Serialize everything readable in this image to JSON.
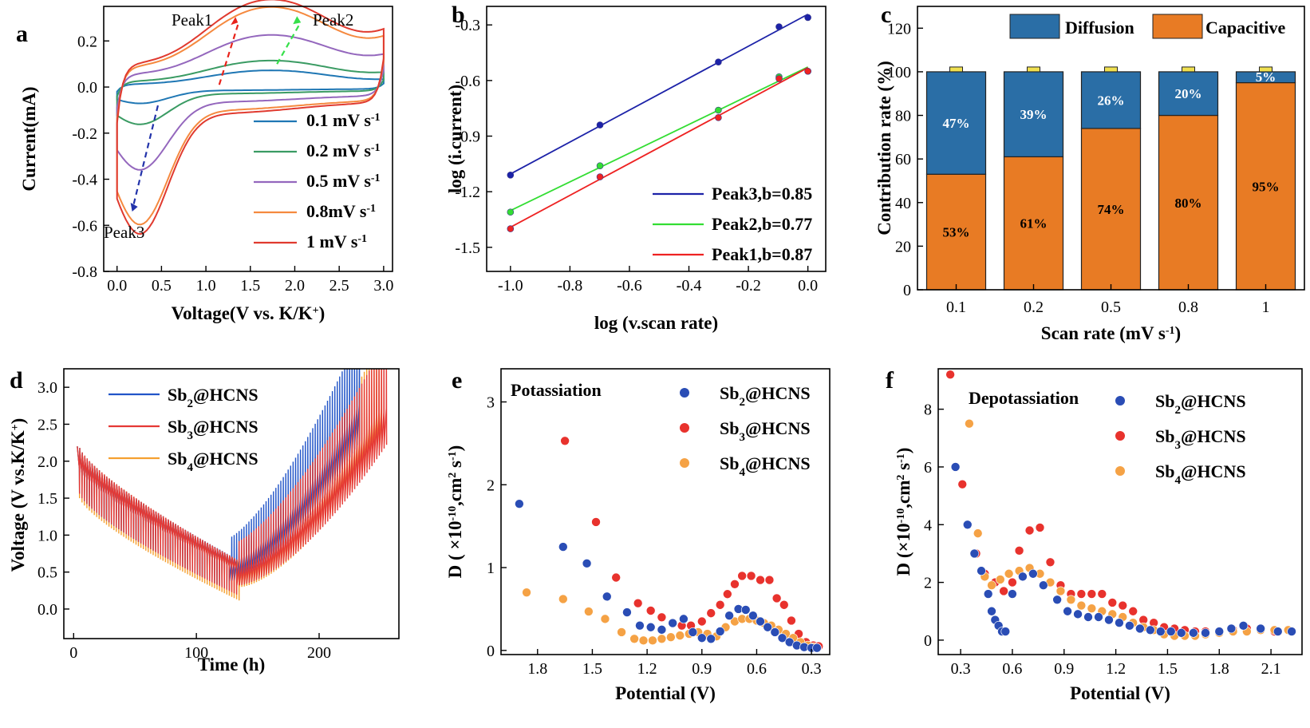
{
  "chart_data": [
    {
      "id": "a",
      "panel_label": "a",
      "type": "line",
      "xlabel": "Voltage(V vs. K/K",
      "xlabel_sup": "+",
      "xlabel_tail": ")",
      "ylabel": "Current(mA)",
      "xlim": [
        -0.15,
        3.1
      ],
      "ylim": [
        -0.8,
        0.35
      ],
      "xticks": [
        "0.0",
        "0.5",
        "1.0",
        "1.5",
        "2.0",
        "2.5",
        "3.0"
      ],
      "yticks": [
        "-0.8",
        "-0.6",
        "-0.4",
        "-0.2",
        "0.0",
        "0.2"
      ],
      "series": [
        {
          "name": "0.1 mV s",
          "sup": "-1",
          "color": "#1f77b4",
          "valley": -0.06,
          "peak": 0.06,
          "cap": 0.02
        },
        {
          "name": "0.2 mV s",
          "sup": "-1",
          "color": "#3a9b63",
          "valley": -0.14,
          "peak": 0.09,
          "cap": 0.04
        },
        {
          "name": "0.5 mV s",
          "sup": "-1",
          "color": "#9467bd",
          "valley": -0.31,
          "peak": 0.17,
          "cap": 0.09
        },
        {
          "name": "0.8mV s",
          "sup": "-1",
          "color": "#f5893f",
          "valley": -0.52,
          "peak": 0.26,
          "cap": 0.14
        },
        {
          "name": "1 mV s",
          "sup": "-1",
          "color": "#e03a2f",
          "valley": -0.55,
          "peak": 0.28,
          "cap": 0.16
        }
      ],
      "annotations": [
        {
          "text": "Peak1",
          "color": "#e8231b"
        },
        {
          "text": "Peak2",
          "color": "#36e04a"
        },
        {
          "text": "Peak3",
          "color": "#2233aa"
        }
      ]
    },
    {
      "id": "b",
      "panel_label": "b",
      "type": "scatter",
      "xlabel": "log (v.scan rate)",
      "ylabel": "log (i.current)",
      "xlim": [
        -1.08,
        0.06
      ],
      "ylim": [
        -1.63,
        -0.2
      ],
      "xticks": [
        "-1.0",
        "-0.8",
        "-0.6",
        "-0.4",
        "-0.2",
        "0.0"
      ],
      "yticks": [
        "-1.5",
        "-1.2",
        "-0.9",
        "-0.6",
        "-0.3"
      ],
      "series": [
        {
          "name": "Peak3,b=0.85",
          "color": "#1c22a8",
          "x": [
            -1.0,
            -0.699,
            -0.301,
            -0.097,
            0.0
          ],
          "y": [
            -1.11,
            -0.84,
            -0.5,
            -0.31,
            -0.26
          ]
        },
        {
          "name": "Peak2,b=0.77",
          "color": "#33dd33",
          "x": [
            -1.0,
            -0.699,
            -0.301,
            -0.097,
            0.0
          ],
          "y": [
            -1.31,
            -1.06,
            -0.76,
            -0.58,
            -0.55
          ]
        },
        {
          "name": "Peak1,b=0.87",
          "color": "#ee2222",
          "x": [
            -1.0,
            -0.699,
            -0.301,
            -0.097,
            0.0
          ],
          "y": [
            -1.4,
            -1.12,
            -0.8,
            -0.59,
            -0.55
          ]
        }
      ]
    },
    {
      "id": "c",
      "panel_label": "c",
      "type": "bar",
      "xlabel": "Scan rate  (mV s",
      "xlabel_sup": "-1",
      "xlabel_tail": ")",
      "ylabel": "Contribution rate (%)",
      "ylim": [
        0,
        130
      ],
      "yticks": [
        "0",
        "20",
        "40",
        "60",
        "80",
        "100",
        "120"
      ],
      "categories": [
        "0.1",
        "0.2",
        "0.5",
        "0.8",
        "1"
      ],
      "series": [
        {
          "name": "Capacitive",
          "color": "#e87b24",
          "values": [
            53,
            61,
            74,
            80,
            95
          ],
          "labels": [
            "53%",
            "61%",
            "74%",
            "80%",
            "95%"
          ]
        },
        {
          "name": "Diffusion",
          "color": "#2a6ea6",
          "values": [
            47,
            39,
            26,
            20,
            5
          ],
          "labels": [
            "47%",
            "39%",
            "26%",
            "20%",
            "5%"
          ]
        }
      ]
    },
    {
      "id": "d",
      "panel_label": "d",
      "type": "line",
      "xlabel": "Time (h)",
      "ylabel": "Voltage (V vs.K/K",
      "ylabel_sup": "+",
      "ylabel_tail": ")",
      "xlim": [
        -8,
        265
      ],
      "ylim": [
        -0.4,
        3.25
      ],
      "xticks": [
        "0",
        "100",
        "200"
      ],
      "yticks": [
        "0.0",
        "0.5",
        "1.0",
        "1.5",
        "2.0",
        "2.5",
        "3.0"
      ],
      "series": [
        {
          "name": "Sb",
          "sub": "2",
          "tail": "@HCNS",
          "color": "#2255c8",
          "t_end": 233,
          "t_turn": 127,
          "v_turn": 0.28
        },
        {
          "name": "Sb",
          "sub": "3",
          "tail": "@HCNS",
          "color": "#e53935",
          "t_end": 255,
          "t_turn": 133,
          "v_turn": 0.22
        },
        {
          "name": "Sb",
          "sub": "4",
          "tail": "@HCNS",
          "color": "#f5a030",
          "t_end": 250,
          "t_turn": 135,
          "v_turn": 0.2
        }
      ]
    },
    {
      "id": "e",
      "panel_label": "e",
      "type": "scatter",
      "title": "Potassiation",
      "xlabel": "Potential (V)",
      "ylabel": "D ( ×10",
      "ylabel_sup": "-10",
      "ylabel_mid": ",cm",
      "ylabel_sup2": "2",
      "ylabel_mid2": " s",
      "ylabel_sup3": "-1",
      "ylabel_tail": ")",
      "xlim": [
        2.0,
        0.2
      ],
      "ylim": [
        -0.05,
        3.4
      ],
      "x_reversed": true,
      "xticks": [
        "1.8",
        "1.5",
        "1.2",
        "0.9",
        "0.6",
        "0.3"
      ],
      "yticks": [
        "0",
        "1",
        "2",
        "3"
      ],
      "series": [
        {
          "name": "Sb",
          "sub": "2",
          "tail": "@HCNS",
          "color": "#2a4db5",
          "x": [
            1.9,
            1.66,
            1.53,
            1.42,
            1.31,
            1.24,
            1.18,
            1.12,
            1.06,
            1.0,
            0.95,
            0.9,
            0.85,
            0.8,
            0.75,
            0.7,
            0.66,
            0.62,
            0.58,
            0.54,
            0.5,
            0.46,
            0.42,
            0.38,
            0.34,
            0.3,
            0.27
          ],
          "y": [
            1.77,
            1.25,
            1.05,
            0.65,
            0.46,
            0.3,
            0.28,
            0.25,
            0.33,
            0.38,
            0.22,
            0.15,
            0.14,
            0.23,
            0.42,
            0.5,
            0.49,
            0.42,
            0.35,
            0.28,
            0.22,
            0.15,
            0.1,
            0.06,
            0.04,
            0.03,
            0.03
          ]
        },
        {
          "name": "Sb",
          "sub": "3",
          "tail": "@HCNS",
          "color": "#e8322d",
          "x": [
            1.65,
            1.48,
            1.37,
            1.25,
            1.18,
            1.12,
            1.06,
            1.01,
            0.96,
            0.9,
            0.85,
            0.8,
            0.76,
            0.72,
            0.68,
            0.63,
            0.58,
            0.53,
            0.49,
            0.45,
            0.41,
            0.37,
            0.33,
            0.29,
            0.26
          ],
          "y": [
            2.53,
            1.55,
            0.88,
            0.57,
            0.48,
            0.4,
            0.33,
            0.3,
            0.3,
            0.35,
            0.45,
            0.55,
            0.68,
            0.8,
            0.9,
            0.9,
            0.85,
            0.85,
            0.63,
            0.55,
            0.36,
            0.2,
            0.1,
            0.06,
            0.05
          ]
        },
        {
          "name": "Sb",
          "sub": "4",
          "tail": "@HCNS",
          "color": "#f5a245",
          "x": [
            1.86,
            1.66,
            1.52,
            1.43,
            1.34,
            1.27,
            1.22,
            1.17,
            1.12,
            1.07,
            1.02,
            0.97,
            0.92,
            0.87,
            0.82,
            0.77,
            0.72,
            0.68,
            0.64,
            0.6,
            0.56,
            0.52,
            0.48,
            0.44,
            0.4,
            0.36,
            0.32,
            0.29,
            0.27
          ],
          "y": [
            0.7,
            0.62,
            0.47,
            0.38,
            0.22,
            0.14,
            0.12,
            0.12,
            0.14,
            0.16,
            0.18,
            0.2,
            0.22,
            0.2,
            0.17,
            0.28,
            0.35,
            0.38,
            0.38,
            0.36,
            0.33,
            0.3,
            0.25,
            0.2,
            0.15,
            0.1,
            0.06,
            0.04,
            0.03
          ]
        }
      ]
    },
    {
      "id": "f",
      "panel_label": "f",
      "type": "scatter",
      "title": "Depotassiation",
      "xlabel": "Potential (V)",
      "ylabel": "D (×10",
      "ylabel_sup": "-10",
      "ylabel_mid": ",cm",
      "ylabel_sup2": "2",
      "ylabel_mid2": " s",
      "ylabel_sup3": "-1",
      "ylabel_tail": ")",
      "xlim": [
        0.17,
        2.28
      ],
      "ylim": [
        -0.5,
        9.4
      ],
      "xticks": [
        "0.3",
        "0.6",
        "0.9",
        "1.2",
        "1.5",
        "1.8",
        "2.1"
      ],
      "yticks": [
        "0",
        "2",
        "4",
        "6",
        "8"
      ],
      "series": [
        {
          "name": "Sb",
          "sub": "2",
          "tail": "@HCNS",
          "color": "#2a4db5",
          "x": [
            0.27,
            0.34,
            0.38,
            0.42,
            0.46,
            0.48,
            0.5,
            0.52,
            0.54,
            0.56,
            0.6,
            0.66,
            0.72,
            0.78,
            0.86,
            0.92,
            0.98,
            1.04,
            1.1,
            1.16,
            1.22,
            1.28,
            1.34,
            1.4,
            1.46,
            1.52,
            1.58,
            1.65,
            1.72,
            1.8,
            1.87,
            1.94,
            2.04,
            2.14,
            2.22
          ],
          "y": [
            6.0,
            4.0,
            3.0,
            2.4,
            1.6,
            1.0,
            0.7,
            0.5,
            0.3,
            0.3,
            1.6,
            2.2,
            2.3,
            1.9,
            1.4,
            1.0,
            0.9,
            0.8,
            0.8,
            0.7,
            0.6,
            0.5,
            0.4,
            0.35,
            0.3,
            0.3,
            0.25,
            0.25,
            0.25,
            0.3,
            0.4,
            0.5,
            0.4,
            0.3,
            0.3
          ]
        },
        {
          "name": "Sb",
          "sub": "3",
          "tail": "@HCNS",
          "color": "#e8322d",
          "x": [
            0.24,
            0.31,
            0.39,
            0.44,
            0.5,
            0.55,
            0.6,
            0.64,
            0.7,
            0.76,
            0.82,
            0.88,
            0.94,
            1.0,
            1.06,
            1.12,
            1.18,
            1.24,
            1.3,
            1.36,
            1.42,
            1.48,
            1.54,
            1.6,
            1.66,
            1.72,
            1.8,
            1.88,
            1.96,
            2.04,
            2.12
          ],
          "y": [
            9.2,
            5.4,
            3.0,
            2.3,
            2.0,
            1.7,
            2.0,
            3.1,
            3.8,
            3.9,
            2.7,
            1.9,
            1.6,
            1.6,
            1.6,
            1.6,
            1.3,
            1.2,
            1.0,
            0.7,
            0.6,
            0.45,
            0.4,
            0.35,
            0.3,
            0.3,
            0.3,
            0.35,
            0.4,
            0.35,
            0.3
          ]
        },
        {
          "name": "Sb",
          "sub": "4",
          "tail": "@HCNS",
          "color": "#f5a245",
          "x": [
            0.35,
            0.4,
            0.44,
            0.48,
            0.53,
            0.58,
            0.64,
            0.7,
            0.76,
            0.82,
            0.88,
            0.94,
            1.0,
            1.06,
            1.12,
            1.18,
            1.24,
            1.3,
            1.36,
            1.42,
            1.48,
            1.54,
            1.6,
            1.66,
            1.72,
            1.8,
            1.88,
            1.96,
            2.04,
            2.12,
            2.2
          ],
          "y": [
            7.5,
            3.7,
            2.2,
            1.9,
            2.1,
            2.3,
            2.4,
            2.5,
            2.3,
            2.0,
            1.7,
            1.4,
            1.2,
            1.1,
            1.0,
            0.9,
            0.8,
            0.6,
            0.45,
            0.35,
            0.2,
            0.15,
            0.15,
            0.15,
            0.2,
            0.25,
            0.3,
            0.3,
            0.35,
            0.35,
            0.35
          ]
        }
      ]
    }
  ]
}
